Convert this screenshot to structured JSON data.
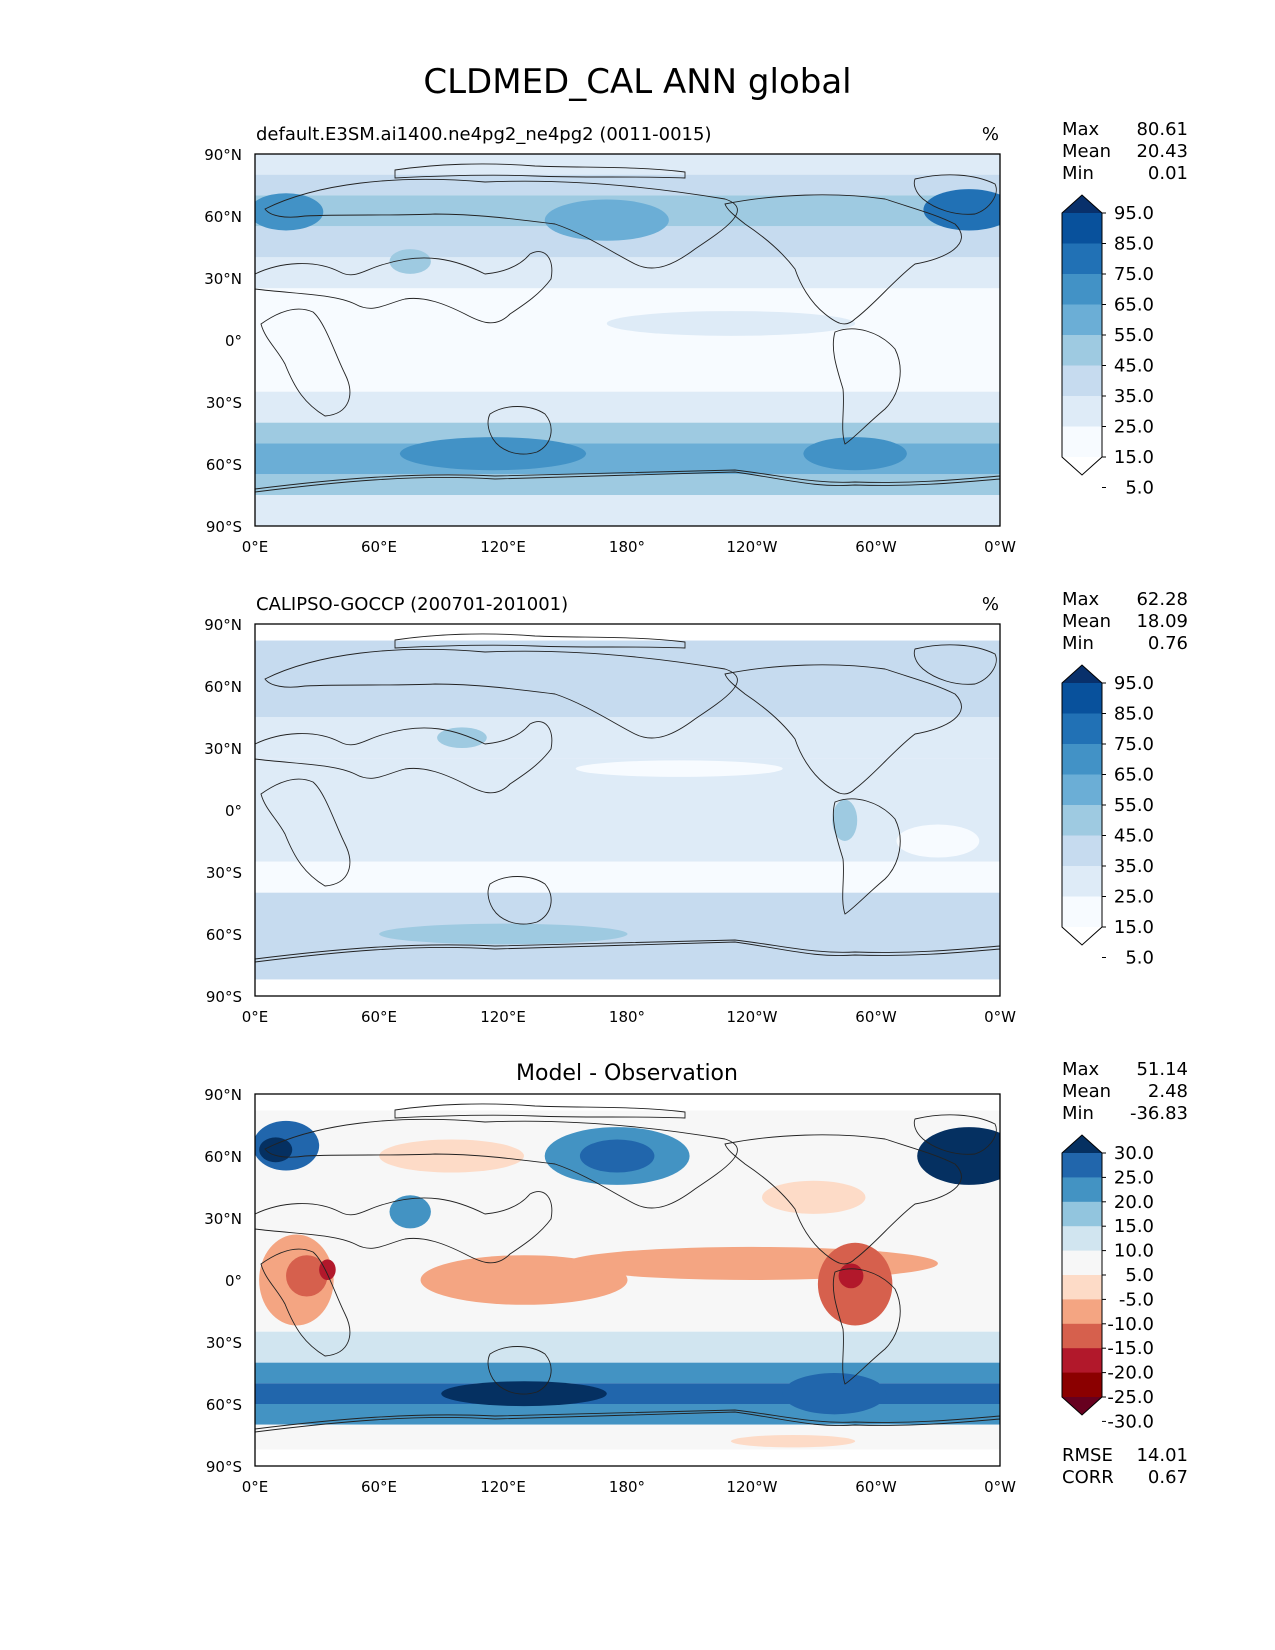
{
  "figure": {
    "title": "CLDMED_CAL ANN global",
    "lat_ticks": [
      "90°N",
      "60°N",
      "30°N",
      "0°",
      "30°S",
      "60°S",
      "90°S"
    ],
    "lon_ticks": [
      "0°E",
      "60°E",
      "120°E",
      "180°",
      "120°W",
      "60°W",
      "0°W"
    ]
  },
  "chart_data": [
    {
      "type": "heatmap",
      "title": "default.E3SM.ai1400.ne4pg2_ne4pg2 (0011-0015)",
      "units": "%",
      "xlabel": "",
      "ylabel": "",
      "xlim": [
        0,
        360
      ],
      "ylim": [
        -90,
        90
      ],
      "stats": [
        {
          "label": "Max",
          "value": "80.61"
        },
        {
          "label": "Mean",
          "value": "20.43"
        },
        {
          "label": "Min",
          "value": "0.01"
        }
      ],
      "colorbar": {
        "levels": [
          "95.0",
          "85.0",
          "75.0",
          "65.0",
          "55.0",
          "45.0",
          "35.0",
          "25.0",
          "15.0",
          "5.0"
        ],
        "colors": [
          "#08306b",
          "#08519c",
          "#2171b5",
          "#4292c6",
          "#6baed6",
          "#9ecae1",
          "#c6dbef",
          "#deebf7",
          "#f7fbff",
          "#ffffff"
        ]
      },
      "lat_bands": [
        {
          "lat": [
            80,
            90
          ],
          "color": "#deebf7"
        },
        {
          "lat": [
            70,
            80
          ],
          "color": "#c6dbef"
        },
        {
          "lat": [
            55,
            70
          ],
          "color": "#9ecae1"
        },
        {
          "lat": [
            40,
            55
          ],
          "color": "#c6dbef"
        },
        {
          "lat": [
            25,
            40
          ],
          "color": "#deebf7"
        },
        {
          "lat": [
            -25,
            25
          ],
          "color": "#f7fbff"
        },
        {
          "lat": [
            -40,
            -25
          ],
          "color": "#deebf7"
        },
        {
          "lat": [
            -50,
            -40
          ],
          "color": "#9ecae1"
        },
        {
          "lat": [
            -65,
            -50
          ],
          "color": "#6baed6"
        },
        {
          "lat": [
            -75,
            -65
          ],
          "color": "#9ecae1"
        },
        {
          "lat": [
            -90,
            -75
          ],
          "color": "#deebf7"
        }
      ],
      "blobs": [
        {
          "lon": 15,
          "lat": 62,
          "rx": 18,
          "ry": 9,
          "color": "#4292c6"
        },
        {
          "lon": 345,
          "lat": 63,
          "rx": 22,
          "ry": 10,
          "color": "#2171b5"
        },
        {
          "lon": 170,
          "lat": 58,
          "rx": 30,
          "ry": 10,
          "color": "#6baed6"
        },
        {
          "lon": 115,
          "lat": -55,
          "rx": 45,
          "ry": 8,
          "color": "#4292c6"
        },
        {
          "lon": 290,
          "lat": -55,
          "rx": 25,
          "ry": 8,
          "color": "#4292c6"
        },
        {
          "lon": 230,
          "lat": 8,
          "rx": 60,
          "ry": 6,
          "color": "#deebf7"
        },
        {
          "lon": 75,
          "lat": 38,
          "rx": 10,
          "ry": 6,
          "color": "#9ecae1"
        }
      ]
    },
    {
      "type": "heatmap",
      "title": "CALIPSO-GOCCP (200701-201001)",
      "units": "%",
      "xlabel": "",
      "ylabel": "",
      "xlim": [
        0,
        360
      ],
      "ylim": [
        -90,
        90
      ],
      "stats": [
        {
          "label": "Max",
          "value": "62.28"
        },
        {
          "label": "Mean",
          "value": "18.09"
        },
        {
          "label": "Min",
          "value": "0.76"
        }
      ],
      "colorbar": {
        "levels": [
          "95.0",
          "85.0",
          "75.0",
          "65.0",
          "55.0",
          "45.0",
          "35.0",
          "25.0",
          "15.0",
          "5.0"
        ],
        "colors": [
          "#08306b",
          "#08519c",
          "#2171b5",
          "#4292c6",
          "#6baed6",
          "#9ecae1",
          "#c6dbef",
          "#deebf7",
          "#f7fbff",
          "#ffffff"
        ]
      },
      "lat_bands": [
        {
          "lat": [
            82,
            90
          ],
          "color": "#ffffff"
        },
        {
          "lat": [
            45,
            82
          ],
          "color": "#c6dbef"
        },
        {
          "lat": [
            25,
            45
          ],
          "color": "#deebf7"
        },
        {
          "lat": [
            -25,
            25
          ],
          "color": "#deebf7"
        },
        {
          "lat": [
            -40,
            -25
          ],
          "color": "#f7fbff"
        },
        {
          "lat": [
            -82,
            -40
          ],
          "color": "#c6dbef"
        },
        {
          "lat": [
            -90,
            -82
          ],
          "color": "#ffffff"
        }
      ],
      "blobs": [
        {
          "lon": 205,
          "lat": 20,
          "rx": 50,
          "ry": 4,
          "color": "#f7fbff"
        },
        {
          "lon": 330,
          "lat": -15,
          "rx": 20,
          "ry": 8,
          "color": "#f7fbff"
        },
        {
          "lon": 285,
          "lat": -5,
          "rx": 6,
          "ry": 10,
          "color": "#9ecae1"
        },
        {
          "lon": 100,
          "lat": 35,
          "rx": 12,
          "ry": 5,
          "color": "#9ecae1"
        },
        {
          "lon": 120,
          "lat": -60,
          "rx": 60,
          "ry": 5,
          "color": "#9ecae1"
        }
      ]
    },
    {
      "type": "heatmap",
      "title": "Model - Observation",
      "units": "",
      "xlabel": "",
      "ylabel": "",
      "xlim": [
        0,
        360
      ],
      "ylim": [
        -90,
        90
      ],
      "stats": [
        {
          "label": "Max",
          "value": "51.14"
        },
        {
          "label": "Mean",
          "value": "2.48"
        },
        {
          "label": "Min",
          "value": "-36.83"
        }
      ],
      "metrics": [
        {
          "label": "RMSE",
          "value": "14.01"
        },
        {
          "label": "CORR",
          "value": "0.67"
        }
      ],
      "colorbar": {
        "levels": [
          "30.0",
          "25.0",
          "20.0",
          "15.0",
          "10.0",
          "5.0",
          "-5.0",
          "-10.0",
          "-15.0",
          "-20.0",
          "-25.0",
          "-30.0"
        ],
        "colors": [
          "#053061",
          "#2166ac",
          "#4393c3",
          "#92c5de",
          "#d1e5f0",
          "#f7f7f7",
          "#fddbc7",
          "#f4a582",
          "#d6604d",
          "#b2182b",
          "#8b0000",
          "#67001f"
        ]
      },
      "lat_bands": [
        {
          "lat": [
            82,
            90
          ],
          "color": "#ffffff"
        },
        {
          "lat": [
            -25,
            82
          ],
          "color": "#f7f7f7"
        },
        {
          "lat": [
            -40,
            -25
          ],
          "color": "#d1e5f0"
        },
        {
          "lat": [
            -50,
            -40
          ],
          "color": "#4393c3"
        },
        {
          "lat": [
            -60,
            -50
          ],
          "color": "#2166ac"
        },
        {
          "lat": [
            -70,
            -60
          ],
          "color": "#4393c3"
        },
        {
          "lat": [
            -82,
            -70
          ],
          "color": "#f7f7f7"
        },
        {
          "lat": [
            -90,
            -82
          ],
          "color": "#ffffff"
        }
      ],
      "blobs": [
        {
          "lon": 15,
          "lat": 65,
          "rx": 16,
          "ry": 12,
          "color": "#2166ac"
        },
        {
          "lon": 10,
          "lat": 63,
          "rx": 8,
          "ry": 6,
          "color": "#053061"
        },
        {
          "lon": 345,
          "lat": 60,
          "rx": 25,
          "ry": 14,
          "color": "#053061"
        },
        {
          "lon": 175,
          "lat": 60,
          "rx": 35,
          "ry": 14,
          "color": "#4393c3"
        },
        {
          "lon": 175,
          "lat": 60,
          "rx": 18,
          "ry": 8,
          "color": "#2166ac"
        },
        {
          "lon": 95,
          "lat": 60,
          "rx": 35,
          "ry": 8,
          "color": "#fddbc7"
        },
        {
          "lon": 20,
          "lat": 0,
          "rx": 18,
          "ry": 22,
          "color": "#f4a582"
        },
        {
          "lon": 25,
          "lat": 2,
          "rx": 10,
          "ry": 10,
          "color": "#d6604d"
        },
        {
          "lon": 35,
          "lat": 5,
          "rx": 4,
          "ry": 5,
          "color": "#b2182b"
        },
        {
          "lon": 130,
          "lat": 0,
          "rx": 50,
          "ry": 12,
          "color": "#f4a582"
        },
        {
          "lon": 240,
          "lat": 8,
          "rx": 90,
          "ry": 8,
          "color": "#f4a582"
        },
        {
          "lon": 290,
          "lat": -2,
          "rx": 18,
          "ry": 20,
          "color": "#d6604d"
        },
        {
          "lon": 288,
          "lat": 2,
          "rx": 6,
          "ry": 6,
          "color": "#b2182b"
        },
        {
          "lon": 130,
          "lat": -55,
          "rx": 40,
          "ry": 6,
          "color": "#053061"
        },
        {
          "lon": 280,
          "lat": -55,
          "rx": 25,
          "ry": 10,
          "color": "#2166ac"
        },
        {
          "lon": 270,
          "lat": 40,
          "rx": 25,
          "ry": 8,
          "color": "#fddbc7"
        },
        {
          "lon": 75,
          "lat": 33,
          "rx": 10,
          "ry": 8,
          "color": "#4393c3"
        },
        {
          "lon": 260,
          "lat": -78,
          "rx": 30,
          "ry": 3,
          "color": "#fddbc7"
        }
      ]
    }
  ]
}
